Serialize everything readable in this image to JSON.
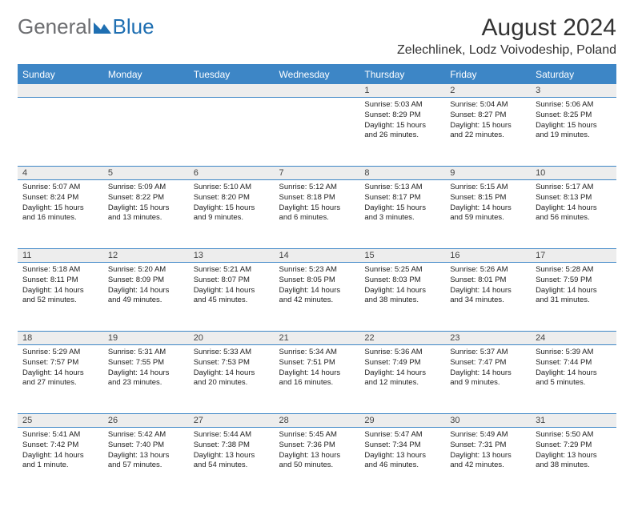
{
  "brand": {
    "part1": "General",
    "part2": "Blue"
  },
  "colors": {
    "header_bg": "#3d86c6",
    "header_text": "#ffffff",
    "cell_border": "#3d86c6",
    "daynum_bg": "#ededed",
    "logo_gray": "#6d6e71",
    "logo_blue": "#1f6fb2",
    "page_bg": "#ffffff",
    "text": "#222222"
  },
  "title": "August 2024",
  "location": "Zelechlinek, Lodz Voivodeship, Poland",
  "weekdays": [
    "Sunday",
    "Monday",
    "Tuesday",
    "Wednesday",
    "Thursday",
    "Friday",
    "Saturday"
  ],
  "weeks": [
    [
      null,
      null,
      null,
      null,
      {
        "n": "1",
        "sr": "5:03 AM",
        "ss": "8:29 PM",
        "dl": "15 hours and 26 minutes."
      },
      {
        "n": "2",
        "sr": "5:04 AM",
        "ss": "8:27 PM",
        "dl": "15 hours and 22 minutes."
      },
      {
        "n": "3",
        "sr": "5:06 AM",
        "ss": "8:25 PM",
        "dl": "15 hours and 19 minutes."
      }
    ],
    [
      {
        "n": "4",
        "sr": "5:07 AM",
        "ss": "8:24 PM",
        "dl": "15 hours and 16 minutes."
      },
      {
        "n": "5",
        "sr": "5:09 AM",
        "ss": "8:22 PM",
        "dl": "15 hours and 13 minutes."
      },
      {
        "n": "6",
        "sr": "5:10 AM",
        "ss": "8:20 PM",
        "dl": "15 hours and 9 minutes."
      },
      {
        "n": "7",
        "sr": "5:12 AM",
        "ss": "8:18 PM",
        "dl": "15 hours and 6 minutes."
      },
      {
        "n": "8",
        "sr": "5:13 AM",
        "ss": "8:17 PM",
        "dl": "15 hours and 3 minutes."
      },
      {
        "n": "9",
        "sr": "5:15 AM",
        "ss": "8:15 PM",
        "dl": "14 hours and 59 minutes."
      },
      {
        "n": "10",
        "sr": "5:17 AM",
        "ss": "8:13 PM",
        "dl": "14 hours and 56 minutes."
      }
    ],
    [
      {
        "n": "11",
        "sr": "5:18 AM",
        "ss": "8:11 PM",
        "dl": "14 hours and 52 minutes."
      },
      {
        "n": "12",
        "sr": "5:20 AM",
        "ss": "8:09 PM",
        "dl": "14 hours and 49 minutes."
      },
      {
        "n": "13",
        "sr": "5:21 AM",
        "ss": "8:07 PM",
        "dl": "14 hours and 45 minutes."
      },
      {
        "n": "14",
        "sr": "5:23 AM",
        "ss": "8:05 PM",
        "dl": "14 hours and 42 minutes."
      },
      {
        "n": "15",
        "sr": "5:25 AM",
        "ss": "8:03 PM",
        "dl": "14 hours and 38 minutes."
      },
      {
        "n": "16",
        "sr": "5:26 AM",
        "ss": "8:01 PM",
        "dl": "14 hours and 34 minutes."
      },
      {
        "n": "17",
        "sr": "5:28 AM",
        "ss": "7:59 PM",
        "dl": "14 hours and 31 minutes."
      }
    ],
    [
      {
        "n": "18",
        "sr": "5:29 AM",
        "ss": "7:57 PM",
        "dl": "14 hours and 27 minutes."
      },
      {
        "n": "19",
        "sr": "5:31 AM",
        "ss": "7:55 PM",
        "dl": "14 hours and 23 minutes."
      },
      {
        "n": "20",
        "sr": "5:33 AM",
        "ss": "7:53 PM",
        "dl": "14 hours and 20 minutes."
      },
      {
        "n": "21",
        "sr": "5:34 AM",
        "ss": "7:51 PM",
        "dl": "14 hours and 16 minutes."
      },
      {
        "n": "22",
        "sr": "5:36 AM",
        "ss": "7:49 PM",
        "dl": "14 hours and 12 minutes."
      },
      {
        "n": "23",
        "sr": "5:37 AM",
        "ss": "7:47 PM",
        "dl": "14 hours and 9 minutes."
      },
      {
        "n": "24",
        "sr": "5:39 AM",
        "ss": "7:44 PM",
        "dl": "14 hours and 5 minutes."
      }
    ],
    [
      {
        "n": "25",
        "sr": "5:41 AM",
        "ss": "7:42 PM",
        "dl": "14 hours and 1 minute."
      },
      {
        "n": "26",
        "sr": "5:42 AM",
        "ss": "7:40 PM",
        "dl": "13 hours and 57 minutes."
      },
      {
        "n": "27",
        "sr": "5:44 AM",
        "ss": "7:38 PM",
        "dl": "13 hours and 54 minutes."
      },
      {
        "n": "28",
        "sr": "5:45 AM",
        "ss": "7:36 PM",
        "dl": "13 hours and 50 minutes."
      },
      {
        "n": "29",
        "sr": "5:47 AM",
        "ss": "7:34 PM",
        "dl": "13 hours and 46 minutes."
      },
      {
        "n": "30",
        "sr": "5:49 AM",
        "ss": "7:31 PM",
        "dl": "13 hours and 42 minutes."
      },
      {
        "n": "31",
        "sr": "5:50 AM",
        "ss": "7:29 PM",
        "dl": "13 hours and 38 minutes."
      }
    ]
  ],
  "labels": {
    "sunrise": "Sunrise:",
    "sunset": "Sunset:",
    "daylight": "Daylight:"
  }
}
